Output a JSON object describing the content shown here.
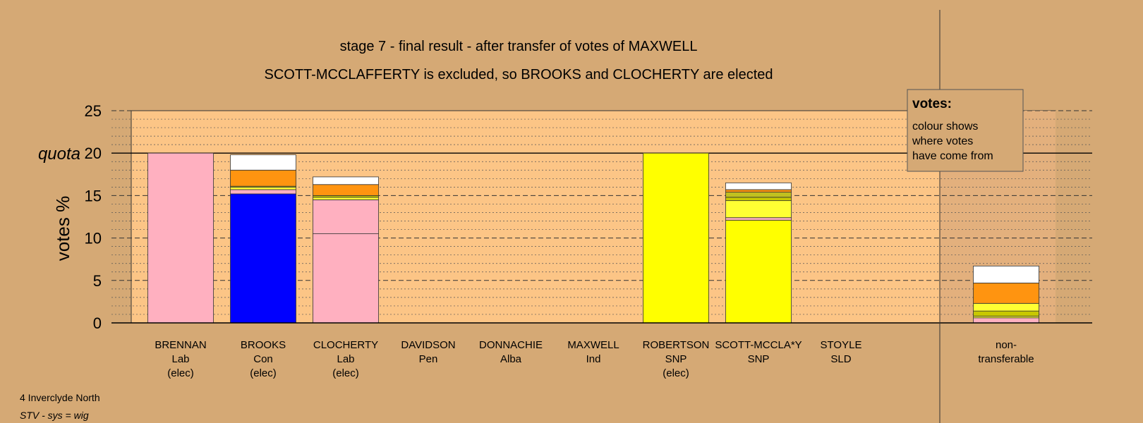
{
  "chart_data": {
    "type": "bar",
    "stacked": true,
    "title": "stage 7 - final result - after transfer of votes of MAXWELL",
    "subtitle": "SCOTT-MCCLAFFERTY is excluded, so BROOKS and CLOCHERTY are elected",
    "ylabel": "votes %",
    "ylim": [
      0,
      25
    ],
    "yticks": [
      "0",
      "5",
      "10",
      "15",
      "20",
      "25"
    ],
    "quota": 20,
    "quota_label": "quota",
    "grid": true,
    "legend": {
      "title": "votes:",
      "lines": [
        "colour shows",
        "where votes",
        "have come from"
      ]
    },
    "categories": [
      {
        "name": "BRENNAN",
        "party": "Lab",
        "status": "(elec)",
        "segments": [
          {
            "value": 20.0,
            "color": "#ffb0c0"
          }
        ]
      },
      {
        "name": "BROOKS",
        "party": "Con",
        "status": "(elec)",
        "segments": [
          {
            "value": 15.2,
            "color": "#0000ff"
          },
          {
            "value": 0.5,
            "color": "#ffb0c0"
          },
          {
            "value": 0.3,
            "color": "#ffff33"
          },
          {
            "value": 0.1,
            "color": "#c8c800"
          },
          {
            "value": 1.9,
            "color": "#ff9410"
          },
          {
            "value": 1.8,
            "color": "#ffffff"
          }
        ]
      },
      {
        "name": "CLOCHERTY",
        "party": "Lab",
        "status": "(elec)",
        "segments": [
          {
            "value": 10.5,
            "color": "#ffb0c0"
          },
          {
            "value": 4.0,
            "color": "#ffb0c0"
          },
          {
            "value": 0.3,
            "color": "#ffff33"
          },
          {
            "value": 0.2,
            "color": "#c8c800"
          },
          {
            "value": 1.3,
            "color": "#ff9410"
          },
          {
            "value": 0.9,
            "color": "#ffffff"
          }
        ]
      },
      {
        "name": "DAVIDSON",
        "party": "Pen",
        "status": "",
        "segments": []
      },
      {
        "name": "DONNACHIE",
        "party": "Alba",
        "status": "",
        "segments": []
      },
      {
        "name": "MAXWELL",
        "party": "Ind",
        "status": "",
        "segments": []
      },
      {
        "name": "ROBERTSON",
        "party": "SNP",
        "status": "(elec)",
        "segments": [
          {
            "value": 20.0,
            "color": "#ffff00"
          }
        ]
      },
      {
        "name": "SCOTT-MCCLA*Y",
        "party": "SNP",
        "status": "",
        "segments": [
          {
            "value": 12.1,
            "color": "#ffff00"
          },
          {
            "value": 0.3,
            "color": "#ffb0c0"
          },
          {
            "value": 2.0,
            "color": "#ffff33"
          },
          {
            "value": 0.4,
            "color": "#c8c800"
          },
          {
            "value": 0.6,
            "color": "#c0c020"
          },
          {
            "value": 0.3,
            "color": "#ff9410"
          },
          {
            "value": 0.8,
            "color": "#ffffff"
          }
        ]
      },
      {
        "name": "STOYLE",
        "party": "SLD",
        "status": "",
        "segments": []
      },
      {
        "name": "non-",
        "party": "transferable",
        "status": "",
        "segments": [
          {
            "value": 0.6,
            "color": "#ffb0c0"
          },
          {
            "value": 0.2,
            "color": "#ffff33"
          },
          {
            "value": 0.6,
            "color": "#c8c800"
          },
          {
            "value": 0.9,
            "color": "#ffff33"
          },
          {
            "value": 2.4,
            "color": "#ff9410"
          },
          {
            "value": 2.0,
            "color": "#ffffff"
          }
        ]
      }
    ]
  },
  "footer": {
    "constituency": "4 Inverclyde North",
    "system": "STV - sys = wig"
  }
}
